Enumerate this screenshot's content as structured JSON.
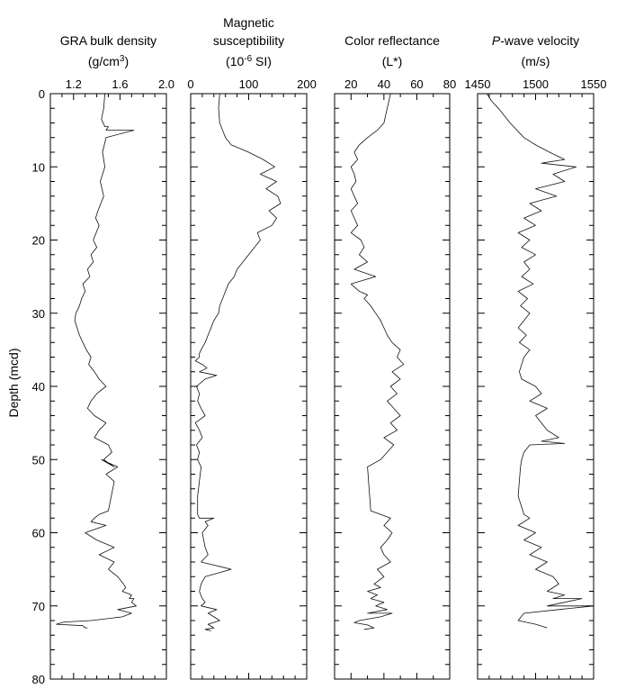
{
  "chart_data": [
    {
      "type": "line",
      "title_lines": [
        "GRA bulk density",
        "(g/cm",
        ")"
      ],
      "title_sup": "3",
      "x_ticks": [
        "1.2",
        "1.6",
        "2.0"
      ],
      "x_minor": [
        1.1,
        1.3,
        1.4,
        1.5,
        1.7,
        1.8,
        1.9
      ],
      "xlim": [
        1.0,
        2.0
      ],
      "ylabel": "Depth (mcd)",
      "y_ticks": [
        "0",
        "10",
        "20",
        "30",
        "40",
        "50",
        "60",
        "70",
        "80"
      ],
      "ylim": [
        0,
        80
      ],
      "series": [
        {
          "x": [
            1.47,
            1.46,
            1.44,
            1.47,
            1.5,
            1.48,
            1.72,
            1.48,
            1.45,
            1.47,
            1.43,
            1.46,
            1.41,
            1.39,
            1.42,
            1.37,
            1.4,
            1.35,
            1.37,
            1.32,
            1.34,
            1.28,
            1.3,
            1.27,
            1.25,
            1.22,
            1.21,
            1.23,
            1.25,
            1.28,
            1.31,
            1.35,
            1.33,
            1.38,
            1.42,
            1.48,
            1.4,
            1.35,
            1.32,
            1.38,
            1.48,
            1.42,
            1.38,
            1.5,
            1.53,
            1.46,
            1.55,
            1.44,
            1.58,
            1.48,
            1.55,
            1.5,
            1.42,
            1.38,
            1.35,
            1.48,
            1.3,
            1.4,
            1.55,
            1.42,
            1.55,
            1.5,
            1.58,
            1.63,
            1.65,
            1.62,
            1.7,
            1.68,
            1.72,
            1.7,
            1.74,
            1.58,
            1.7,
            1.62,
            1.35,
            1.12,
            1.05,
            1.28,
            1.3,
            1.32
          ],
          "y": [
            0,
            2,
            3.5,
            4.5,
            4.5,
            5,
            5,
            6,
            8,
            10,
            12,
            14,
            16,
            17,
            18,
            20,
            21,
            22,
            23,
            24,
            25,
            26,
            27,
            28,
            29,
            30,
            31,
            32,
            33,
            34,
            35,
            36,
            37,
            38,
            39,
            40,
            41,
            42,
            43,
            44,
            45,
            46,
            47,
            48,
            49,
            50,
            51,
            50,
            51,
            52,
            53,
            57,
            57.5,
            58,
            58.5,
            59,
            60,
            61,
            62,
            63,
            64,
            65,
            66,
            67,
            67.5,
            68,
            68.5,
            69,
            69,
            69.5,
            70,
            70.5,
            71,
            71.5,
            72,
            72.2,
            72.5,
            72.7,
            73,
            73
          ]
        }
      ]
    },
    {
      "type": "line",
      "title_lines": [
        "Magnetic",
        "susceptibility",
        "(10",
        " SI)"
      ],
      "title_sup": "-6",
      "x_ticks": [
        "0",
        "100",
        "200"
      ],
      "x_minor": [
        20,
        40,
        60,
        80,
        120,
        140,
        160,
        180
      ],
      "xlim": [
        0,
        200
      ],
      "ylabel": "",
      "y_ticks": [
        "0",
        "10",
        "20",
        "30",
        "40",
        "50",
        "60",
        "70",
        "80"
      ],
      "ylim": [
        0,
        80
      ],
      "series": [
        {
          "x": [
            50,
            48,
            50,
            55,
            60,
            70,
            85,
            100,
            125,
            145,
            120,
            148,
            130,
            150,
            155,
            135,
            148,
            140,
            115,
            120,
            110,
            100,
            90,
            80,
            75,
            65,
            60,
            55,
            50,
            48,
            40,
            35,
            30,
            25,
            18,
            15,
            15,
            8,
            20,
            28,
            15,
            45,
            25,
            10,
            15,
            12,
            18,
            25,
            8,
            15,
            20,
            10,
            15,
            12,
            18,
            12,
            12,
            15,
            40,
            25,
            30,
            20,
            25,
            30,
            18,
            70,
            25,
            18,
            15,
            20,
            25,
            18,
            45,
            30,
            40,
            50,
            30,
            40,
            25,
            35
          ],
          "y": [
            0,
            2,
            4,
            5,
            6,
            7,
            7.5,
            8,
            9,
            10,
            11,
            12,
            13,
            14,
            15,
            16,
            17,
            18,
            19,
            20,
            21,
            22,
            23,
            24,
            25,
            26,
            27,
            28,
            29,
            30,
            31,
            32,
            33,
            34,
            35,
            35.5,
            36,
            36.5,
            37,
            37.5,
            38,
            38.5,
            39,
            40,
            41,
            42,
            43,
            44,
            45,
            46,
            47,
            48,
            49,
            50,
            51,
            55,
            57.5,
            58,
            58,
            58.5,
            59,
            60,
            62,
            63,
            64,
            65,
            66,
            67,
            68,
            69,
            69.5,
            70,
            70.5,
            71,
            71.5,
            72,
            72.5,
            73,
            73.2,
            73.4
          ]
        }
      ]
    },
    {
      "type": "line",
      "title_lines": [
        "Color reflectance",
        "(L*)"
      ],
      "title_sup": "",
      "x_ticks": [
        "20",
        "40",
        "60",
        "80"
      ],
      "x_minor": [
        10,
        30,
        50,
        70
      ],
      "xlim": [
        10,
        80
      ],
      "ylabel": "",
      "y_ticks": [
        "0",
        "10",
        "20",
        "30",
        "40",
        "50",
        "60",
        "70",
        "80"
      ],
      "ylim": [
        0,
        80
      ],
      "series": [
        {
          "x": [
            44,
            42,
            40,
            36,
            30,
            25,
            22,
            24,
            20,
            22,
            23,
            20,
            22,
            24,
            20,
            22,
            24,
            20,
            26,
            28,
            25,
            30,
            22,
            35,
            20,
            25,
            30,
            28,
            32,
            35,
            38,
            40,
            42,
            45,
            50,
            48,
            52,
            45,
            50,
            44,
            48,
            42,
            46,
            50,
            44,
            48,
            40,
            46,
            42,
            38,
            30,
            32,
            44,
            40,
            45,
            42,
            38,
            40,
            44,
            36,
            40,
            34,
            38,
            30,
            36,
            32,
            40,
            35,
            42,
            30,
            45,
            38,
            25,
            22,
            30,
            34,
            28
          ],
          "y": [
            0,
            2,
            4,
            5,
            6,
            7,
            8,
            9,
            10,
            11,
            12,
            13,
            14,
            15,
            16,
            17,
            18,
            19,
            20,
            21,
            22,
            23,
            24,
            25,
            26,
            27,
            27.5,
            28,
            29,
            30,
            31,
            32,
            33,
            34,
            35,
            36,
            37,
            38,
            39,
            40,
            41,
            42,
            43,
            44,
            45,
            46,
            47,
            48,
            49,
            50,
            51,
            57,
            58,
            59,
            60,
            61,
            62,
            63,
            64,
            65,
            66,
            67,
            67.5,
            68,
            68.5,
            69,
            69.5,
            70,
            70.5,
            71,
            71,
            71.5,
            72,
            72.3,
            72.6,
            73,
            73.2
          ]
        }
      ]
    },
    {
      "type": "line",
      "title_lines": [
        "P",
        "-wave velocity",
        "(m/s)"
      ],
      "title_sup": "",
      "x_ticks": [
        "1450",
        "1500",
        "1550"
      ],
      "x_minor": [
        1460,
        1470,
        1480,
        1490,
        1510,
        1520,
        1530,
        1540
      ],
      "xlim": [
        1450,
        1550
      ],
      "ylabel": "",
      "y_ticks": [
        "0",
        "10",
        "20",
        "30",
        "40",
        "50",
        "60",
        "70",
        "80"
      ],
      "ylim": [
        0,
        80
      ],
      "series": [
        {
          "x": [
            1458,
            1462,
            1468,
            1478,
            1490,
            1500,
            1512,
            1525,
            1505,
            1535,
            1515,
            1525,
            1500,
            1518,
            1495,
            1505,
            1490,
            1500,
            1485,
            1495,
            1488,
            1500,
            1490,
            1495,
            1488,
            1498,
            1485,
            1493,
            1487,
            1495,
            1490,
            1485,
            1492,
            1486,
            1495,
            1490,
            1488,
            1486,
            1488,
            1500,
            1505,
            1495,
            1510,
            1500,
            1505,
            1510,
            1520,
            1505,
            1525,
            1495,
            1490,
            1488,
            1487,
            1485,
            1490,
            1495,
            1485,
            1500,
            1490,
            1505,
            1495,
            1510,
            1500,
            1515,
            1520,
            1510,
            1525,
            1515,
            1540,
            1510,
            1550,
            1520,
            1490,
            1485,
            1500,
            1510
          ],
          "y": [
            0,
            1,
            2,
            4,
            6,
            7,
            8,
            9,
            9.5,
            10,
            11,
            12,
            13,
            14,
            15,
            16,
            17,
            18,
            19,
            20,
            21,
            22,
            23,
            24,
            25,
            26,
            27,
            28,
            29,
            30,
            31,
            32,
            33,
            34,
            35,
            36,
            37,
            38,
            39,
            40,
            41,
            42,
            43,
            44,
            45,
            46,
            47,
            47.5,
            47.8,
            48,
            49,
            50,
            51,
            55,
            57.5,
            58,
            59,
            60,
            61,
            62,
            63,
            64,
            65,
            66,
            67,
            68,
            68.5,
            69,
            69,
            70,
            70,
            70.5,
            71,
            72,
            72.5,
            73
          ]
        }
      ]
    }
  ]
}
